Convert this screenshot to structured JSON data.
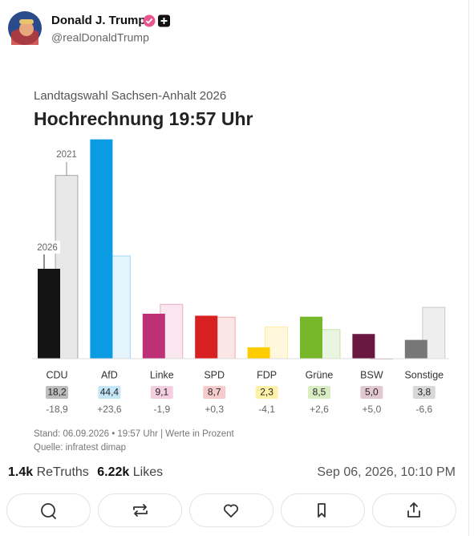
{
  "post": {
    "author": "Donald J. Trump",
    "handle": "@realDonaldTrump",
    "retruths_count": "1.4k",
    "retruths_label": "ReTruths",
    "likes_count": "6.22k",
    "likes_label": "Likes",
    "timestamp": "Sep 06, 2026, 10:10 PM"
  },
  "chart_data": {
    "type": "bar",
    "subtitle": "Landtagswahl Sachsen-Anhalt 2026",
    "title": "Hochrechnung 19:57 Uhr",
    "categories": [
      "CDU",
      "AfD",
      "Linke",
      "SPD",
      "FDP",
      "Grüne",
      "BSW",
      "Sonstige"
    ],
    "series": [
      {
        "name": "2026",
        "colors": [
          "#141414",
          "#0a9be2",
          "#be3075",
          "#d92020",
          "#ffcc00",
          "#76b82a",
          "#6a1840",
          "#777777"
        ],
        "label_colors": [
          "#bdbdbd",
          "#c4e6f7",
          "#f3cfe0",
          "#f6cbcb",
          "#fff2a8",
          "#d9edc3",
          "#e2c8d3",
          "#d8d8d8"
        ],
        "values": [
          18.2,
          44.4,
          9.1,
          8.7,
          2.3,
          8.5,
          5.0,
          3.8
        ],
        "value_labels": [
          "18,2",
          "44,4",
          "9,1",
          "8,7",
          "2,3",
          "8,5",
          "5,0",
          "3,8"
        ]
      },
      {
        "name": "2021",
        "colors": [
          "#e8e8e8",
          "#e3f4fc",
          "#f9e6ee",
          "#fbe6e6",
          "#fff8dc",
          "#eaf5df",
          "#f1e4ea",
          "#eeeeee"
        ],
        "values": [
          37.1,
          20.8,
          11.0,
          8.4,
          6.4,
          5.9,
          0,
          10.4
        ]
      }
    ],
    "changes": {
      "values": [
        -18.9,
        23.6,
        -1.9,
        0.3,
        -4.1,
        2.6,
        5.0,
        -6.6
      ],
      "value_labels": [
        "-18,9",
        "+23,6",
        "-1,9",
        "+0,3",
        "-4,1",
        "+2,6",
        "+5,0",
        "-6,6"
      ]
    },
    "ylim": [
      0,
      45
    ],
    "notes": [
      "Stand: 06.09.2026 • 19:57 Uhr | Werte in Prozent",
      "Quelle: infratest dimap"
    ]
  }
}
